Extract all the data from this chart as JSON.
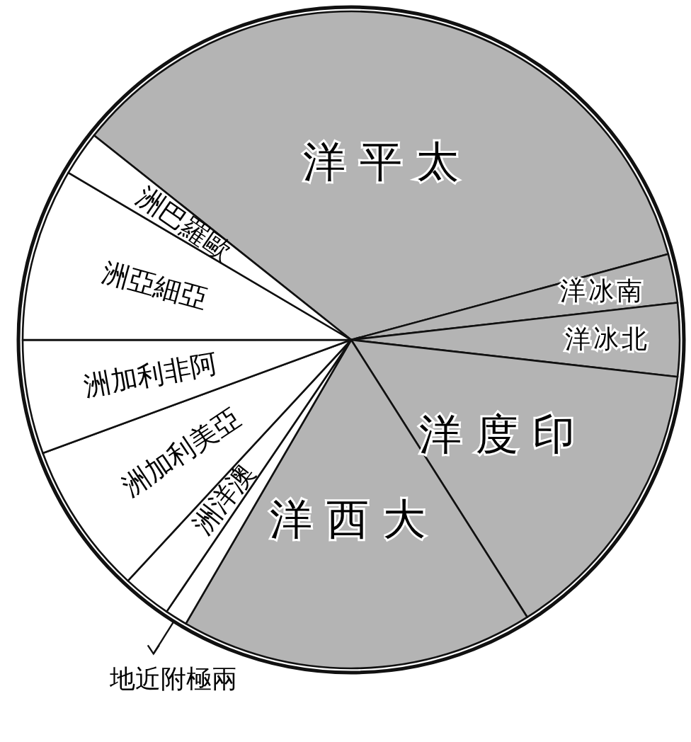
{
  "chart_data": {
    "type": "pie",
    "categories": [
      "洋平太",
      "洋冰南",
      "洋冰北",
      "洋度印",
      "洋西大",
      "地近附極兩",
      "洲洋澳",
      "洲加利美亞",
      "洲加利非阿",
      "洲亞細亞",
      "洲巴羅歐"
    ],
    "values": [
      35.1,
      2.4,
      3.6,
      14.2,
      17.4,
      1.1,
      2.4,
      7.5,
      5.6,
      8.5,
      2.2
    ],
    "colors": [
      "#b4b4b4",
      "#b4b4b4",
      "#b4b4b4",
      "#b4b4b4",
      "#b4b4b4",
      "#ffffff",
      "#ffffff",
      "#ffffff",
      "#ffffff",
      "#ffffff",
      "#ffffff"
    ]
  }
}
